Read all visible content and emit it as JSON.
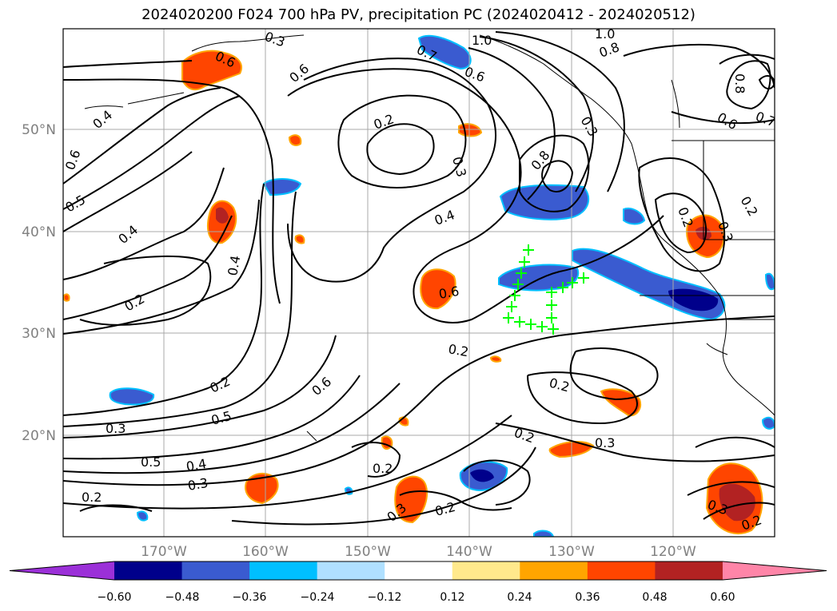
{
  "title": "2024020200 F024 700 hPa PV, precipitation PC (2024020412 - 2024020512)",
  "lat_labels": [
    "50°N",
    "40°N",
    "30°N",
    "20°N"
  ],
  "lon_labels": [
    "170°W",
    "160°W",
    "150°W",
    "140°W",
    "130°W",
    "120°W"
  ],
  "contour_labels": [
    "0.6",
    "0.6",
    "0.4",
    "0.6",
    "0.5",
    "0.4",
    "0.4",
    "0.2",
    "0.2",
    "0.3",
    "0.5",
    "0.5",
    "0.4",
    "0.2",
    "0.2",
    "0.2",
    "0.3",
    "0.4",
    "0.6",
    "0.7",
    "0.6",
    "1.0",
    "1.0",
    "0.8",
    "0.8",
    "0.3",
    "0.2",
    "0.6",
    "0.2",
    "0.2",
    "0.3",
    "0.2",
    "0.3",
    "0.2",
    "0.3",
    "0.6",
    "0.7",
    "0.8",
    "0.3",
    "0.2",
    "0.3",
    "0.3",
    "0.2"
  ],
  "colorbar": {
    "tick_labels": [
      "−0.60",
      "−0.48",
      "−0.36",
      "−0.24",
      "−0.12",
      "0.12",
      "0.24",
      "0.36",
      "0.48",
      "0.60"
    ],
    "colors": [
      "#9b30d8",
      "#00008b",
      "#3a5bd0",
      "#00bfff",
      "#b0e0ff",
      "#ffffff",
      "#ffe98c",
      "#ffa500",
      "#ff4500",
      "#b22222",
      "#ff85a8"
    ]
  },
  "markers": {
    "symbol": "+",
    "color": "#00ff00"
  }
}
